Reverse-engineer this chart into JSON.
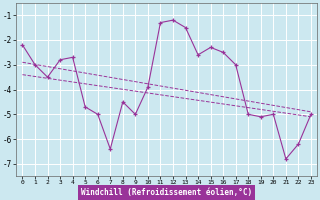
{
  "xlabel": "Windchill (Refroidissement éolien,°C)",
  "bg_color": "#cce8f0",
  "line_color": "#993399",
  "grid_color": "#ffffff",
  "hours": [
    0,
    1,
    2,
    3,
    4,
    5,
    6,
    7,
    8,
    9,
    10,
    11,
    12,
    13,
    14,
    15,
    16,
    17,
    18,
    19,
    20,
    21,
    22,
    23
  ],
  "windchill": [
    -2.2,
    -3.0,
    -3.5,
    -2.8,
    -2.7,
    -4.7,
    -5.0,
    -6.4,
    -4.5,
    -5.0,
    -3.9,
    -1.3,
    -1.2,
    -1.5,
    -2.6,
    -2.3,
    -2.5,
    -3.0,
    -5.0,
    -5.1,
    -5.0,
    -6.8,
    -6.2,
    -5.0
  ],
  "trend1_x": [
    0,
    23
  ],
  "trend1_y": [
    -2.9,
    -4.9
  ],
  "trend2_x": [
    0,
    23
  ],
  "trend2_y": [
    -3.4,
    -5.1
  ],
  "ylim": [
    -7.5,
    -0.5
  ],
  "yticks": [
    -7,
    -6,
    -5,
    -4,
    -3,
    -2,
    -1
  ],
  "xlim": [
    -0.5,
    23.5
  ]
}
